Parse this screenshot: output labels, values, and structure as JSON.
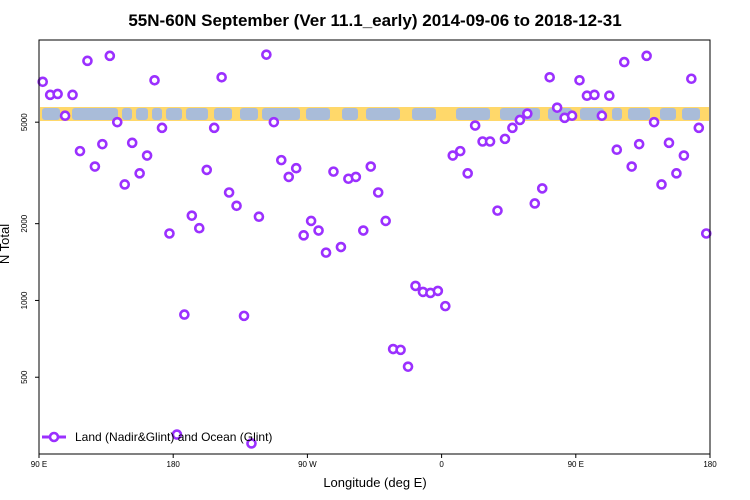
{
  "chart_data": {
    "type": "scatter",
    "title": "55N-60N September (Ver 11.1_early)   2014-09-06 to 2018-12-31",
    "xlabel": "Longitude (deg E)",
    "ylabel": "N Total",
    "x_ticks": [
      {
        "value": 90,
        "label": "90 E"
      },
      {
        "value": 180,
        "label": "180"
      },
      {
        "value": 270,
        "label": "90 W"
      },
      {
        "value": 360,
        "label": "0"
      },
      {
        "value": 450,
        "label": "90 E"
      },
      {
        "value": 540,
        "label": "180"
      }
    ],
    "y_ticks": [
      {
        "value": 500,
        "label": "500"
      },
      {
        "value": 1000,
        "label": "1000"
      },
      {
        "value": 2000,
        "label": "2000"
      },
      {
        "value": 5000,
        "label": "5000"
      }
    ],
    "xlim": [
      90,
      540
    ],
    "ylim_log": [
      250,
      10500
    ],
    "y_scale": "log",
    "colors": {
      "marker": "#9b30ff",
      "land": "#ffd86a",
      "ocean": "#a9bcd9"
    },
    "legend": {
      "position": "bottom-left",
      "entries": [
        "Land (Nadir&Glint) and Ocean (Glint)"
      ]
    },
    "series": [
      {
        "name": "Land (Nadir&Glint) and Ocean (Glint)",
        "points": [
          [
            92.5,
            7200
          ],
          [
            97.5,
            6400
          ],
          [
            102.5,
            6450
          ],
          [
            107.5,
            5300
          ],
          [
            112.5,
            6400
          ],
          [
            117.5,
            3850
          ],
          [
            122.5,
            8700
          ],
          [
            127.5,
            3350
          ],
          [
            132.5,
            4100
          ],
          [
            137.5,
            9100
          ],
          [
            142.5,
            5000
          ],
          [
            147.5,
            2850
          ],
          [
            152.5,
            4150
          ],
          [
            157.5,
            3150
          ],
          [
            162.5,
            3700
          ],
          [
            167.5,
            7300
          ],
          [
            172.5,
            4750
          ],
          [
            177.5,
            1830
          ],
          [
            182.5,
            298
          ],
          [
            187.5,
            880
          ],
          [
            192.5,
            2150
          ],
          [
            197.5,
            1920
          ],
          [
            202.5,
            3250
          ],
          [
            207.5,
            4750
          ],
          [
            212.5,
            7500
          ],
          [
            217.5,
            2650
          ],
          [
            222.5,
            2350
          ],
          [
            227.5,
            870
          ],
          [
            232.5,
            275
          ],
          [
            237.5,
            2130
          ],
          [
            242.5,
            9200
          ],
          [
            247.5,
            5000
          ],
          [
            252.5,
            3550
          ],
          [
            257.5,
            3050
          ],
          [
            262.5,
            3300
          ],
          [
            267.5,
            1800
          ],
          [
            272.5,
            2050
          ],
          [
            277.5,
            1880
          ],
          [
            282.5,
            1540
          ],
          [
            287.5,
            3200
          ],
          [
            292.5,
            1620
          ],
          [
            297.5,
            3000
          ],
          [
            302.5,
            3050
          ],
          [
            307.5,
            1880
          ],
          [
            312.5,
            3350
          ],
          [
            317.5,
            2650
          ],
          [
            322.5,
            2050
          ],
          [
            327.5,
            645
          ],
          [
            332.5,
            640
          ],
          [
            337.5,
            550
          ],
          [
            342.5,
            1140
          ],
          [
            347.5,
            1080
          ],
          [
            352.5,
            1070
          ],
          [
            357.5,
            1090
          ],
          [
            362.5,
            950
          ],
          [
            367.5,
            3700
          ],
          [
            372.5,
            3850
          ],
          [
            377.5,
            3150
          ],
          [
            382.5,
            4850
          ],
          [
            387.5,
            4200
          ],
          [
            392.5,
            4200
          ],
          [
            397.5,
            2250
          ],
          [
            402.5,
            4300
          ],
          [
            407.5,
            4750
          ],
          [
            412.5,
            5100
          ],
          [
            417.5,
            5400
          ],
          [
            422.5,
            2400
          ],
          [
            427.5,
            2750
          ],
          [
            432.5,
            7500
          ],
          [
            437.5,
            5700
          ],
          [
            442.5,
            5200
          ],
          [
            447.5,
            5300
          ],
          [
            452.5,
            7300
          ],
          [
            457.5,
            6350
          ],
          [
            462.5,
            6400
          ],
          [
            467.5,
            5300
          ],
          [
            472.5,
            6350
          ],
          [
            477.5,
            3900
          ],
          [
            482.5,
            8600
          ],
          [
            487.5,
            3350
          ],
          [
            492.5,
            4100
          ],
          [
            497.5,
            9100
          ],
          [
            502.5,
            5000
          ],
          [
            507.5,
            2850
          ],
          [
            512.5,
            4150
          ],
          [
            517.5,
            3150
          ],
          [
            522.5,
            3700
          ],
          [
            527.5,
            7400
          ],
          [
            532.5,
            4750
          ],
          [
            537.5,
            1830
          ]
        ]
      }
    ]
  }
}
